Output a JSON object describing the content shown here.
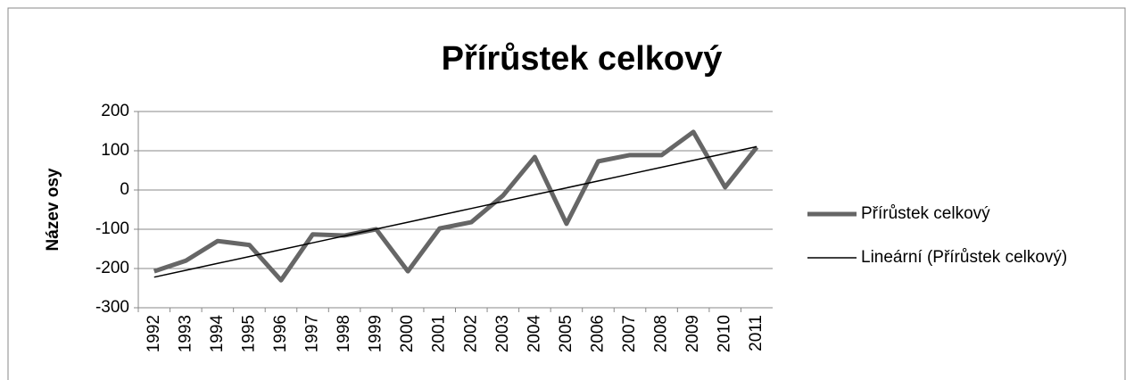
{
  "chart_data": {
    "type": "line",
    "title": "Přírůstek celkový",
    "y_label": "Název osy",
    "categories": [
      "1992",
      "1993",
      "1994",
      "1995",
      "1996",
      "1997",
      "1998",
      "1999",
      "2000",
      "2001",
      "2002",
      "2003",
      "2004",
      "2005",
      "2006",
      "2007",
      "2008",
      "2009",
      "2010",
      "2011"
    ],
    "series": [
      {
        "name": "Přírůstek celkový",
        "color": "#666666",
        "width": 5,
        "values": [
          -207,
          -180,
          -130,
          -140,
          -230,
          -113,
          -116,
          -100,
          -207,
          -98,
          -82,
          -14,
          84,
          -86,
          73,
          89,
          89,
          148,
          7,
          109
        ]
      },
      {
        "name": "Lineární (Přírůstek celkový)",
        "color": "#000000",
        "width": 1.5,
        "values": [
          -222,
          -204.5,
          -187,
          -169.5,
          -152,
          -134.5,
          -117,
          -99.5,
          -82,
          -64.5,
          -47,
          -29.5,
          -12,
          5.5,
          23,
          40.5,
          58,
          75.5,
          93,
          110.5
        ]
      }
    ],
    "ylim": [
      -300,
      200
    ],
    "yticks": [
      -300,
      -200,
      -100,
      0,
      100,
      200
    ],
    "grid": true,
    "legend": "right"
  }
}
